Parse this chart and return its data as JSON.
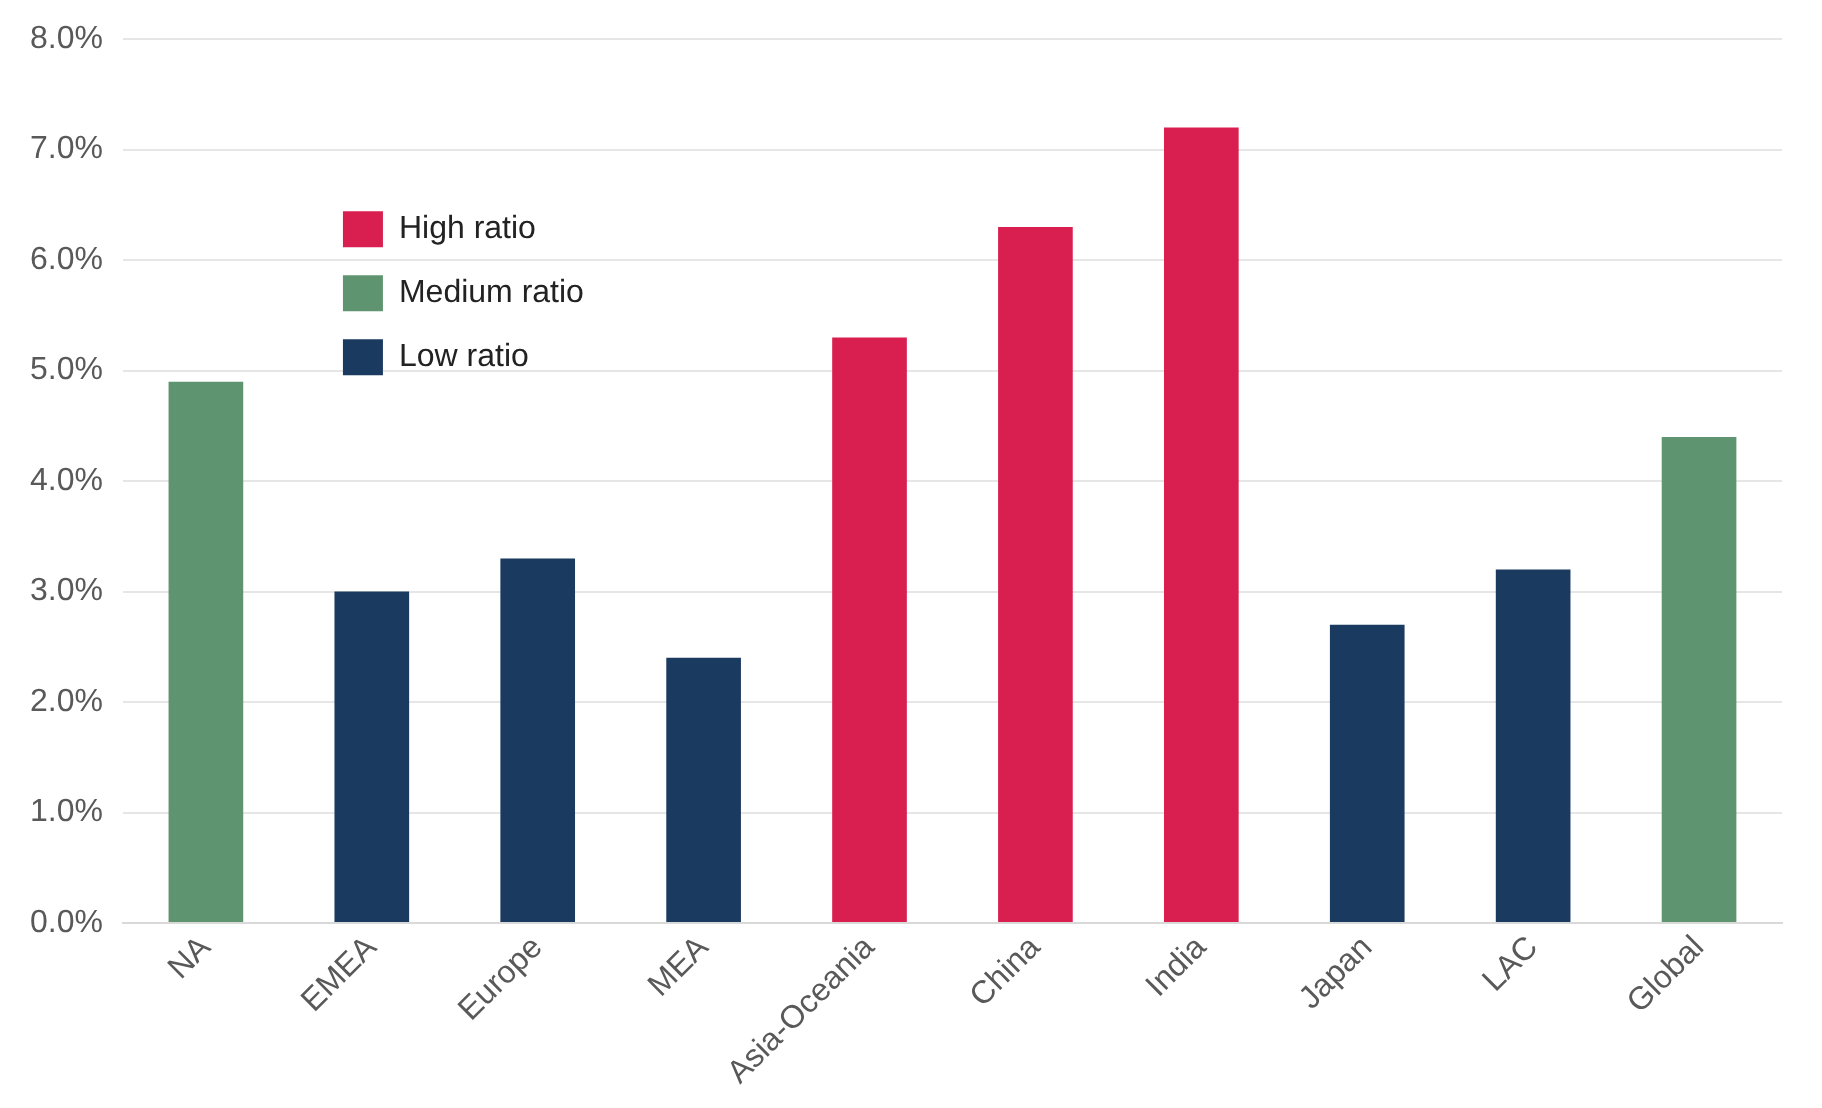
{
  "chart_data": {
    "type": "bar",
    "categories": [
      "NA",
      "EMEA",
      "Europe",
      "MEA",
      "Asia-Oceania",
      "China",
      "India",
      "Japan",
      "LAC",
      "Global"
    ],
    "series": [
      {
        "name": "High ratio",
        "color": "#d81f4f",
        "values": [
          null,
          null,
          null,
          null,
          5.3,
          6.3,
          7.2,
          null,
          null,
          null
        ]
      },
      {
        "name": "Medium ratio",
        "color": "#5f9470",
        "values": [
          4.9,
          null,
          null,
          null,
          null,
          null,
          null,
          null,
          null,
          4.4
        ]
      },
      {
        "name": "Low ratio",
        "color": "#1b3a60",
        "values": [
          null,
          3.0,
          3.3,
          2.4,
          null,
          null,
          null,
          2.7,
          3.2,
          null
        ]
      }
    ],
    "ylim": [
      0,
      8
    ],
    "yticks": [
      {
        "value": 0,
        "label": "0.0%"
      },
      {
        "value": 1,
        "label": "1.0%"
      },
      {
        "value": 2,
        "label": "2.0%"
      },
      {
        "value": 3,
        "label": "3.0%"
      },
      {
        "value": 4,
        "label": "4.0%"
      },
      {
        "value": 5,
        "label": "5.0%"
      },
      {
        "value": 6,
        "label": "6.0%"
      },
      {
        "value": 7,
        "label": "7.0%"
      },
      {
        "value": 8,
        "label": "8.0%"
      }
    ],
    "grid": "y",
    "legend": "top left"
  }
}
